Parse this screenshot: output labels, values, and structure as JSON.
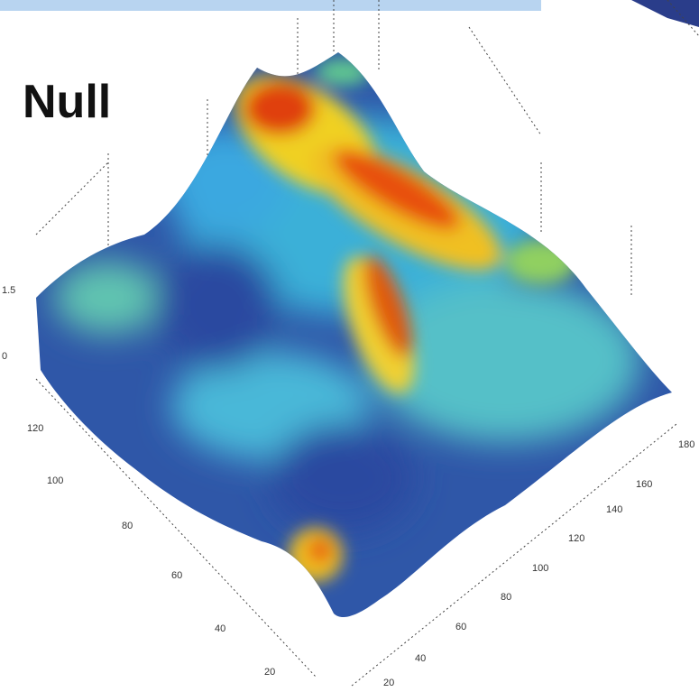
{
  "label": "Null",
  "left_axis_ticks": [
    "120",
    "100",
    "80",
    "60",
    "40",
    "20"
  ],
  "right_axis_ticks": [
    "180",
    "160",
    "140",
    "120",
    "100",
    "80",
    "60",
    "40",
    "20"
  ],
  "vertical_axis_ticks": [
    "1.5",
    "0"
  ]
}
